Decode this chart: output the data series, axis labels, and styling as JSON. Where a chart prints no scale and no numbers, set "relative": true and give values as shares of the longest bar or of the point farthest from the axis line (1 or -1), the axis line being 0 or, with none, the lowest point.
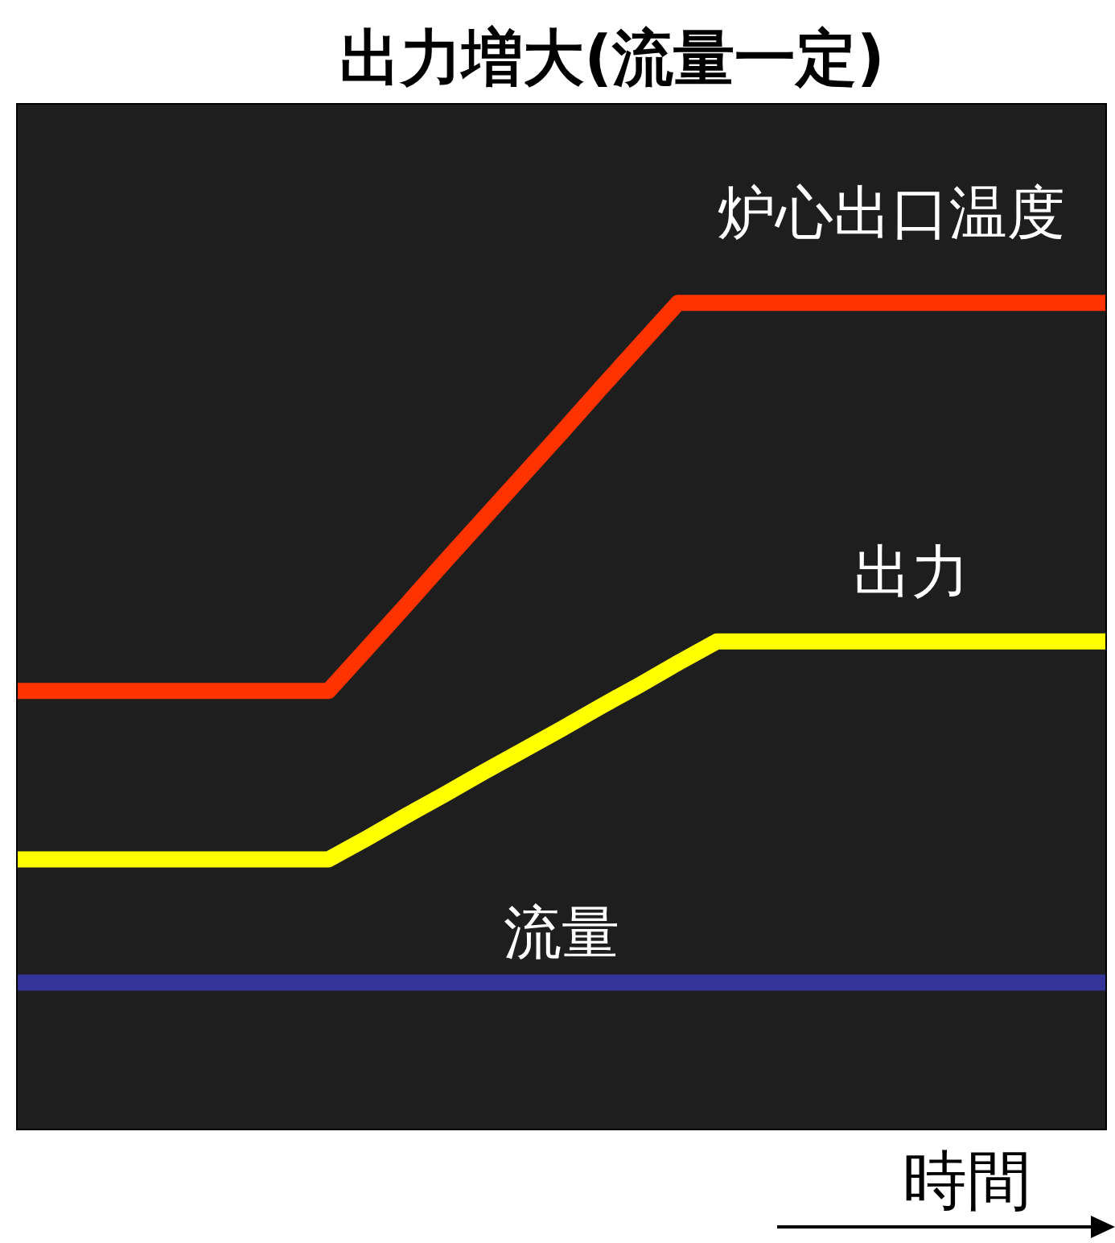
{
  "chart_data": {
    "type": "line",
    "title": "出力増大(流量一定)",
    "xlabel": "時間",
    "relative": true,
    "grid": false,
    "legend": false,
    "marker": "none",
    "line_style": "solid",
    "categories": [
      null,
      null,
      null,
      null,
      null,
      null,
      null,
      null,
      null,
      null,
      null,
      null,
      null,
      null,
      null,
      null,
      null,
      null,
      null,
      null,
      null,
      null,
      null,
      null,
      null,
      null,
      null,
      null,
      null
    ],
    "series": [
      {
        "name": "炉心出口温度",
        "color": "#ff3300",
        "values": [
          0.53,
          0.53,
          0.53,
          0.53,
          0.53,
          0.53,
          0.53,
          0.53,
          0.53,
          0.582,
          0.634,
          0.687,
          0.739,
          0.791,
          0.843,
          0.896,
          0.948,
          1,
          1,
          1,
          1,
          1,
          1,
          1,
          1,
          1,
          1,
          1,
          1
        ]
      },
      {
        "name": "出力",
        "color": "#ffff00",
        "values": [
          0.326,
          0.326,
          0.326,
          0.326,
          0.326,
          0.326,
          0.326,
          0.326,
          0.326,
          0.352,
          0.379,
          0.405,
          0.432,
          0.458,
          0.484,
          0.511,
          0.537,
          0.564,
          0.59,
          0.59,
          0.59,
          0.59,
          0.59,
          0.59,
          0.59,
          0.59,
          0.59,
          0.59,
          0.59
        ]
      },
      {
        "name": "流量",
        "color": "#333399",
        "values": [
          0.177,
          0.177,
          0.177,
          0.177,
          0.177,
          0.177,
          0.177,
          0.177,
          0.177,
          0.177,
          0.177,
          0.177,
          0.177,
          0.177,
          0.177,
          0.177,
          0.177,
          0.177,
          0.177,
          0.177,
          0.177,
          0.177,
          0.177,
          0.177,
          0.177,
          0.177,
          0.177,
          0.177,
          0.177
        ]
      }
    ]
  }
}
